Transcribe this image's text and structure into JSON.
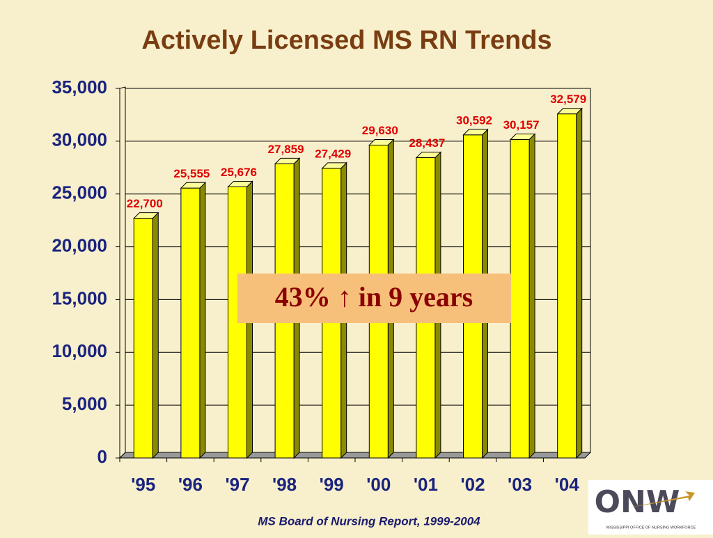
{
  "chart_data": {
    "type": "bar",
    "title": "Actively Licensed MS RN Trends",
    "categories": [
      "'95",
      "'96",
      "'97",
      "'98",
      "'99",
      "'00",
      "'01",
      "'02",
      "'03",
      "'04"
    ],
    "values": [
      22700,
      25555,
      25676,
      27859,
      27429,
      29630,
      28437,
      30592,
      30157,
      32579
    ],
    "value_labels": [
      "22,700",
      "25,555",
      "25,676",
      "27,859",
      "27,429",
      "29,630",
      "28,437",
      "30,592",
      "30,157",
      "32,579"
    ],
    "color": "#ffff00",
    "ylim": [
      0,
      35000
    ],
    "yticks": [
      0,
      {
        "value": 5000,
        "label": "5,000"
      },
      {
        "value": 10000,
        "label": "10,000"
      },
      {
        "value": 15000,
        "label": "15,000"
      },
      {
        "value": 20000,
        "label": "20,000"
      },
      {
        "value": 25000,
        "label": "25,000"
      },
      {
        "value": 30000,
        "label": "30,000"
      },
      {
        "value": 35000,
        "label": "35,000"
      }
    ],
    "grid": true,
    "annotation": "43% ↑ in 9 years",
    "source": "MS Board of Nursing Report, 1999-2004"
  },
  "logo": {
    "title": "ONW",
    "subtitle": "MISSISSIPPI OFFICE OF NURSING WORKFORCE"
  }
}
